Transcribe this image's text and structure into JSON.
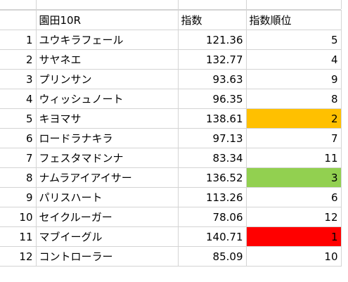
{
  "sheet": {
    "header": {
      "race_label": "園田10R",
      "index_label": "指数",
      "rank_label": "指数順位"
    },
    "rows": [
      {
        "no": "1",
        "name": "ユウキラフェール",
        "index": "121.36",
        "rank": "5",
        "highlight": ""
      },
      {
        "no": "2",
        "name": "サヤネエ",
        "index": "132.77",
        "rank": "4",
        "highlight": ""
      },
      {
        "no": "3",
        "name": "プリンサン",
        "index": "93.63",
        "rank": "9",
        "highlight": ""
      },
      {
        "no": "4",
        "name": "ウィッシュノート",
        "index": "96.35",
        "rank": "8",
        "highlight": ""
      },
      {
        "no": "5",
        "name": "キヨマサ",
        "index": "138.61",
        "rank": "2",
        "highlight": "#ffc000"
      },
      {
        "no": "6",
        "name": "ロードラナキラ",
        "index": "97.13",
        "rank": "7",
        "highlight": ""
      },
      {
        "no": "7",
        "name": "フェスタマドンナ",
        "index": "83.34",
        "rank": "11",
        "highlight": ""
      },
      {
        "no": "8",
        "name": "ナムラアイアイサー",
        "index": "136.52",
        "rank": "3",
        "highlight": "#92d050"
      },
      {
        "no": "9",
        "name": "パリスハート",
        "index": "113.26",
        "rank": "6",
        "highlight": ""
      },
      {
        "no": "10",
        "name": "セイクルーガー",
        "index": "78.06",
        "rank": "12",
        "highlight": ""
      },
      {
        "no": "11",
        "name": "マブイーグル",
        "index": "140.71",
        "rank": "1",
        "highlight": "#ff0000"
      },
      {
        "no": "12",
        "name": "コントローラー",
        "index": "85.09",
        "rank": "10",
        "highlight": ""
      }
    ]
  }
}
